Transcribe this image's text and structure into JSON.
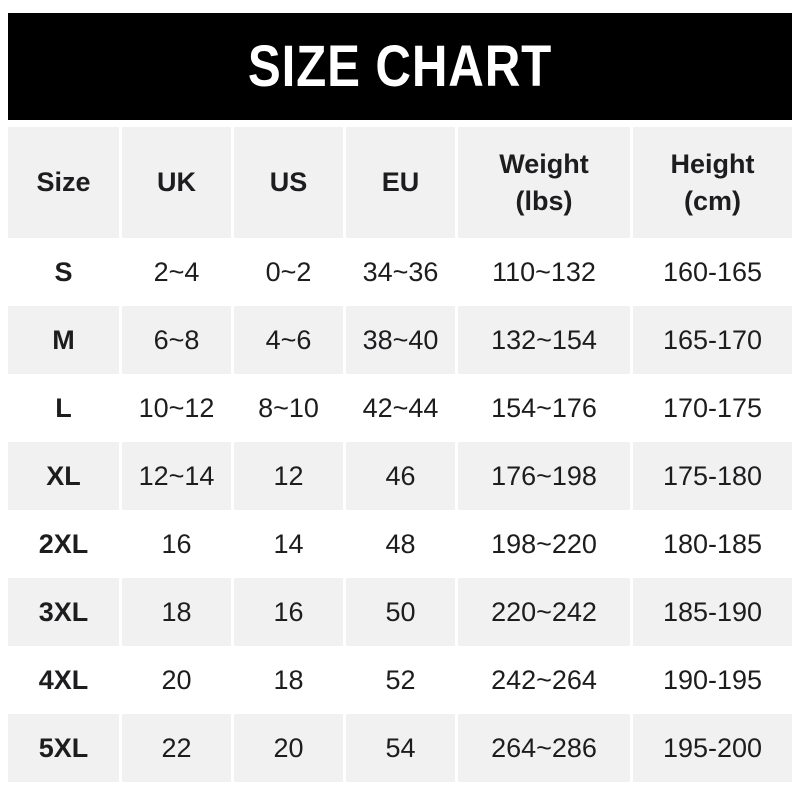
{
  "banner": {
    "title": "SIZE CHART"
  },
  "colors": {
    "banner_bg": "#000000",
    "title_text": "#ffffff",
    "stripe": "#f1f1f2",
    "row_white": "#ffffff",
    "text": "#1d1d1f"
  },
  "table": {
    "header_lines": [
      [
        "Size"
      ],
      [
        "UK"
      ],
      [
        "US"
      ],
      [
        "EU"
      ],
      [
        "Weight",
        "(lbs)"
      ],
      [
        "Height",
        "(cm)"
      ]
    ]
  },
  "chart_data": {
    "type": "table",
    "title": "SIZE CHART",
    "columns": [
      "Size",
      "UK",
      "US",
      "EU",
      "Weight (lbs)",
      "Height (cm)"
    ],
    "rows": [
      [
        "S",
        "2~4",
        "0~2",
        "34~36",
        "110~132",
        "160-165"
      ],
      [
        "M",
        "6~8",
        "4~6",
        "38~40",
        "132~154",
        "165-170"
      ],
      [
        "L",
        "10~12",
        "8~10",
        "42~44",
        "154~176",
        "170-175"
      ],
      [
        "XL",
        "12~14",
        "12",
        "46",
        "176~198",
        "175-180"
      ],
      [
        "2XL",
        "16",
        "14",
        "48",
        "198~220",
        "180-185"
      ],
      [
        "3XL",
        "18",
        "16",
        "50",
        "220~242",
        "185-190"
      ],
      [
        "4XL",
        "20",
        "18",
        "52",
        "242~264",
        "190-195"
      ],
      [
        "5XL",
        "22",
        "20",
        "54",
        "264~286",
        "195-200"
      ]
    ],
    "layout": {
      "striped_rows": "alternating starting white at first data row",
      "header_background": "gray",
      "title_banner": "black bar above table"
    }
  }
}
